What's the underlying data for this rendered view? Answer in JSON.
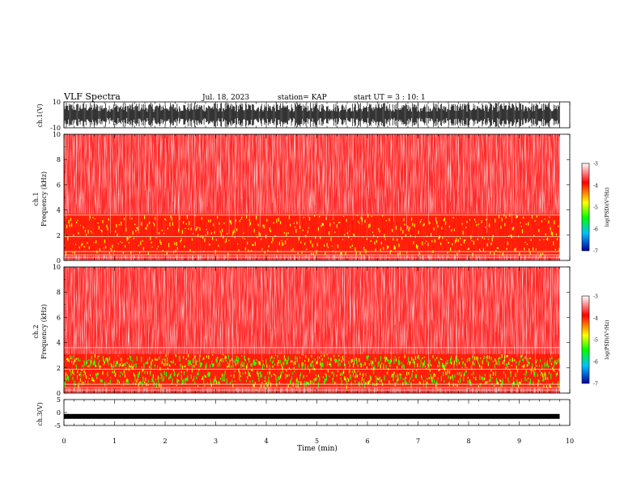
{
  "header": {
    "title": "VLF Spectra",
    "date": "Jul. 18, 2023",
    "station": "station= KAP",
    "start": "start UT =  3 : 10: 1"
  },
  "chart_data": [
    {
      "type": "line",
      "ylabel": "ch.1(V)",
      "ylim": [
        -10,
        10
      ],
      "y_ticks": [
        "10",
        "-10"
      ],
      "xlim": [
        0,
        10
      ]
    },
    {
      "type": "heatmap",
      "ylabel_line1": "ch.1",
      "ylabel_line2": "Frequency (kHz)",
      "ylim": [
        0,
        10
      ],
      "y_ticks": [
        "0",
        "2",
        "4",
        "6",
        "8",
        "10"
      ],
      "colorbar": {
        "label": "log(PSD)(V²/Hz)",
        "ticks": [
          "-3",
          "-4",
          "-5",
          "-6",
          "-7"
        ],
        "range": [
          -7,
          -3
        ]
      }
    },
    {
      "type": "heatmap",
      "ylabel_line1": "ch.2",
      "ylabel_line2": "Frequency (kHz)",
      "ylim": [
        0,
        10
      ],
      "y_ticks": [
        "0",
        "2",
        "4",
        "6",
        "8",
        "10"
      ],
      "colorbar": {
        "label": "log(PSD)(V²/Hz)",
        "ticks": [
          "-3",
          "-4",
          "-5",
          "-6",
          "-7"
        ],
        "range": [
          -7,
          -3
        ]
      }
    },
    {
      "type": "line",
      "ylabel": "ch.3(V)",
      "ylim": [
        -5,
        5
      ],
      "y_ticks": [
        "5",
        "0",
        "-5"
      ],
      "xlim": [
        0,
        10
      ]
    }
  ],
  "xaxis": {
    "label": "Time (min)",
    "ticks": [
      "0",
      "1",
      "2",
      "3",
      "4",
      "5",
      "6",
      "7",
      "8",
      "9",
      "10"
    ],
    "range": [
      0,
      10
    ],
    "data_end": 9.8
  },
  "colors": {
    "high": "#ff0000",
    "mid_high": "#ffff00",
    "mid": "#00ff00",
    "low": "#0000ff",
    "background": "#ffffff"
  }
}
